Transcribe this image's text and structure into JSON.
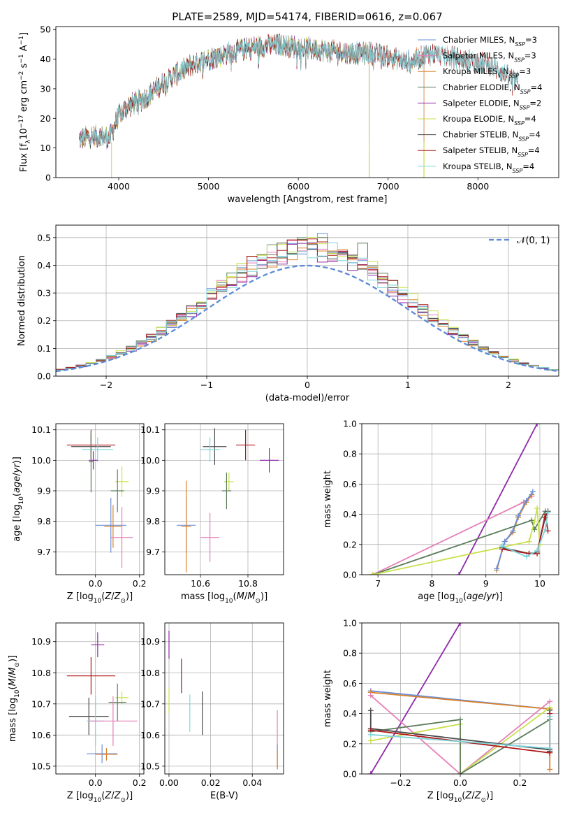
{
  "figure": {
    "title": "PLATE=2589, MJD=54174, FIBERID=0616, z=0.067"
  },
  "colors": {
    "Chabrier MILES": "#6a8fd8",
    "Salpeter MILES": "#e57fb8",
    "Kroupa MILES": "#d9822b",
    "Chabrier ELODIE": "#5a7d5a",
    "Salpeter ELODIE": "#8e2aa8",
    "Kroupa ELODIE": "#c8e04a",
    "Chabrier STELIB": "#4a4a4a",
    "Salpeter STELIB": "#b01818",
    "Kroupa STELIB": "#7fd6dc",
    "gauss": "#5b8ad8",
    "grid": "#b0b0b0"
  },
  "chart_data": [
    {
      "id": "spectrum",
      "type": "line",
      "xlabel": "wavelength [Angstrom, rest frame]",
      "ylabel": "Flux [f_λ10^-17 erg cm^-2 s^-1 A^-1]",
      "xlim": [
        3300,
        8900
      ],
      "ylim": [
        0,
        51
      ],
      "xticks": [
        4000,
        5000,
        6000,
        7000,
        8000
      ],
      "yticks": [
        0,
        10,
        20,
        30,
        40,
        50
      ],
      "grid": false,
      "legend_position": "top-right",
      "legend": [
        {
          "name": "Chabrier MILES",
          "nssp": "3"
        },
        {
          "name": "Salpeter MILES",
          "nssp": "3"
        },
        {
          "name": "Kroupa MILES",
          "nssp": "3"
        },
        {
          "name": "Chabrier ELODIE",
          "nssp": "4"
        },
        {
          "name": "Salpeter ELODIE",
          "nssp": "2"
        },
        {
          "name": "Kroupa ELODIE",
          "nssp": "4"
        },
        {
          "name": "Chabrier STELIB",
          "nssp": "4"
        },
        {
          "name": "Salpeter STELIB",
          "nssp": "4"
        },
        {
          "name": "Kroupa STELIB",
          "nssp": "4"
        }
      ],
      "legend_nssp_label": "N_SSP=",
      "continuum": {
        "x": [
          3560,
          3700,
          3900,
          4000,
          4100,
          4300,
          4500,
          4800,
          5000,
          5200,
          5500,
          5800,
          6000,
          6300,
          6600,
          6800,
          7000,
          7200,
          7500,
          7800,
          8000,
          8200,
          8400
        ],
        "y": [
          13,
          14,
          13.5,
          21,
          24,
          27,
          32,
          38,
          40,
          42,
          44,
          45,
          44,
          43,
          42,
          42,
          41,
          39,
          42,
          40,
          39,
          37,
          33
        ]
      },
      "drops": [
        {
          "x": 3920,
          "y": 0
        },
        {
          "x": 6790,
          "y": 0
        },
        {
          "x": 7400,
          "y": 0
        }
      ],
      "series_end": {
        "MILES": 7400,
        "ELODIE": 6790,
        "STELIB": 8450
      }
    },
    {
      "id": "residual_histogram",
      "type": "histogram",
      "xlabel": "(data-model)/error",
      "ylabel": "Normed distribution",
      "xlim": [
        -2.5,
        2.5
      ],
      "ylim": [
        0,
        0.545
      ],
      "xticks": [
        -2,
        -1,
        0,
        1,
        2
      ],
      "yticks": [
        0.0,
        0.1,
        0.2,
        0.3,
        0.4,
        0.5
      ],
      "grid": true,
      "legend_position": "top-right",
      "gaussian_label": "𝒩(0, 1)",
      "bin_width": 0.1,
      "peak_heights": {
        "Chabrier MILES": 0.47,
        "Salpeter MILES": 0.46,
        "Kroupa MILES": 0.45,
        "Chabrier ELODIE": 0.47,
        "Salpeter ELODIE": 0.45,
        "Kroupa ELODIE": 0.48,
        "Chabrier STELIB": 0.46,
        "Salpeter STELIB": 0.47,
        "Kroupa STELIB": 0.46
      },
      "tallest_bars": [
        {
          "series": "Chabrier MILES",
          "x": 0.15,
          "y": 0.515
        },
        {
          "series": "Chabrier ELODIE",
          "x": 0.55,
          "y": 0.48
        },
        {
          "series": "Kroupa ELODIE",
          "x": 0.05,
          "y": 0.5
        }
      ]
    },
    {
      "id": "age_vs_Z",
      "type": "errorbar",
      "xlabel": "Z [log10(Z/Z⊙)]",
      "ylabel": "age  [log10(age/yr)]",
      "xlim": [
        -0.18,
        0.22
      ],
      "ylim": [
        9.625,
        10.12
      ],
      "xticks": [
        0.0,
        0.2
      ],
      "yticks": [
        9.7,
        9.8,
        9.9,
        10.0,
        10.1
      ],
      "grid": true,
      "points": [
        {
          "s": "Salpeter STELIB",
          "x": -0.02,
          "y": 10.05,
          "xerr": 0.11,
          "yerr": 0.05
        },
        {
          "s": "Chabrier STELIB",
          "x": -0.02,
          "y": 10.045,
          "xerr": 0.09,
          "yerr": 0.04
        },
        {
          "s": "Kroupa STELIB",
          "x": 0.01,
          "y": 10.035,
          "xerr": 0.07,
          "yerr": 0.04
        },
        {
          "s": "Salpeter ELODIE",
          "x": -0.01,
          "y": 10.0,
          "xerr": 0.02,
          "yerr": 0.03
        },
        {
          "s": "Chabrier ELODIE",
          "x": -0.02,
          "y": 9.995,
          "xerr": 0.01,
          "yerr": 0.1
        },
        {
          "s": "Kroupa ELODIE",
          "x": 0.12,
          "y": 9.93,
          "xerr": 0.03,
          "yerr": 0.05
        },
        {
          "s": "Chabrier ELODIE",
          "x": 0.1,
          "y": 9.9,
          "xerr": 0.03,
          "yerr": 0.07
        },
        {
          "s": "Chabrier MILES",
          "x": 0.07,
          "y": 9.787,
          "xerr": 0.07,
          "yerr": 0.09
        },
        {
          "s": "Kroupa MILES",
          "x": 0.08,
          "y": 9.783,
          "xerr": 0.04,
          "yerr": 0.07
        },
        {
          "s": "Salpeter MILES",
          "x": 0.12,
          "y": 9.747,
          "xerr": 0.05,
          "yerr": 0.1
        }
      ]
    },
    {
      "id": "age_vs_mass",
      "type": "errorbar",
      "xlabel": "mass [log10(M/M⊙)]",
      "ylabel": "",
      "xlim": [
        10.45,
        10.95
      ],
      "ylim": [
        9.625,
        10.12
      ],
      "xticks": [
        10.6,
        10.8
      ],
      "yticks": [
        9.7,
        9.8,
        9.9,
        10.0,
        10.1
      ],
      "grid": true,
      "points": [
        {
          "s": "Salpeter STELIB",
          "x": 10.79,
          "y": 10.05,
          "xerr": 0.04,
          "yerr": 0.05
        },
        {
          "s": "Chabrier STELIB",
          "x": 10.66,
          "y": 10.045,
          "xerr": 0.05,
          "yerr": 0.06
        },
        {
          "s": "Kroupa STELIB",
          "x": 10.64,
          "y": 10.035,
          "xerr": 0.04,
          "yerr": 0.04
        },
        {
          "s": "Salpeter ELODIE",
          "x": 10.89,
          "y": 10.0,
          "xerr": 0.04,
          "yerr": 0.04
        },
        {
          "s": "Kroupa ELODIE",
          "x": 10.72,
          "y": 9.93,
          "xerr": 0.02,
          "yerr": 0.03
        },
        {
          "s": "Chabrier ELODIE",
          "x": 10.71,
          "y": 9.9,
          "xerr": 0.02,
          "yerr": 0.06
        },
        {
          "s": "Chabrier MILES",
          "x": 10.54,
          "y": 9.787,
          "xerr": 0.04,
          "yerr": 0.09
        },
        {
          "s": "Kroupa MILES",
          "x": 10.54,
          "y": 9.783,
          "xerr": 0.02,
          "yerr": 0.15
        },
        {
          "s": "Salpeter MILES",
          "x": 10.64,
          "y": 9.747,
          "xerr": 0.04,
          "yerr": 0.08
        }
      ]
    },
    {
      "id": "weight_vs_age",
      "type": "line",
      "xlabel": "age  [log10(age/yr)]",
      "ylabel": "mass weight",
      "xlim": [
        6.7,
        10.35
      ],
      "ylim": [
        0,
        1.0
      ],
      "xticks": [
        7,
        8,
        9,
        10
      ],
      "yticks": [
        0.0,
        0.2,
        0.4,
        0.6,
        0.8,
        1.0
      ],
      "grid": true,
      "series": [
        {
          "s": "Salpeter ELODIE",
          "x": [
            8.5,
            9.95
          ],
          "y": [
            0.0,
            1.0
          ]
        },
        {
          "s": "Salpeter MILES",
          "x": [
            6.9,
            9.7,
            9.85
          ],
          "y": [
            0.0,
            0.48,
            0.52
          ]
        },
        {
          "s": "Kroupa MILES",
          "x": [
            9.2,
            9.35,
            9.5,
            9.6,
            9.75,
            9.85
          ],
          "y": [
            0.03,
            0.22,
            0.28,
            0.38,
            0.48,
            0.53
          ]
        },
        {
          "s": "Chabrier MILES",
          "x": [
            9.2,
            9.35,
            9.5,
            9.6,
            9.75,
            9.87
          ],
          "y": [
            0.04,
            0.22,
            0.29,
            0.39,
            0.49,
            0.55
          ]
        },
        {
          "s": "Chabrier ELODIE",
          "x": [
            6.9,
            9.85,
            9.9,
            10.1
          ],
          "y": [
            0.0,
            0.36,
            0.3,
            0.42
          ]
        },
        {
          "s": "Kroupa ELODIE",
          "x": [
            6.9,
            9.8,
            9.9,
            9.95,
            10.0
          ],
          "y": [
            0.0,
            0.22,
            0.35,
            0.44,
            0.2
          ]
        },
        {
          "s": "Chabrier STELIB",
          "x": [
            9.3,
            9.8,
            9.95,
            10.1,
            10.15
          ],
          "y": [
            0.18,
            0.14,
            0.15,
            0.38,
            0.42
          ]
        },
        {
          "s": "Salpeter STELIB",
          "x": [
            9.3,
            9.8,
            9.95,
            10.1,
            10.15
          ],
          "y": [
            0.17,
            0.14,
            0.14,
            0.4,
            0.29
          ]
        },
        {
          "s": "Kroupa STELIB",
          "x": [
            9.3,
            9.75,
            9.95,
            10.1,
            10.15
          ],
          "y": [
            0.19,
            0.12,
            0.16,
            0.3,
            0.41
          ]
        }
      ]
    },
    {
      "id": "mass_vs_Z",
      "type": "errorbar",
      "xlabel": "Z [log10(Z/Z⊙)]",
      "ylabel": "mass [log10(M/M⊙)]",
      "xlim": [
        -0.18,
        0.22
      ],
      "ylim": [
        10.475,
        10.96
      ],
      "xticks": [
        0.0,
        0.2
      ],
      "yticks": [
        10.5,
        10.6,
        10.7,
        10.8,
        10.9
      ],
      "grid": true,
      "points": [
        {
          "s": "Salpeter ELODIE",
          "x": 0.01,
          "y": 10.89,
          "xerr": 0.03,
          "yerr": 0.04
        },
        {
          "s": "Salpeter STELIB",
          "x": -0.02,
          "y": 10.79,
          "xerr": 0.11,
          "yerr": 0.06
        },
        {
          "s": "Kroupa ELODIE",
          "x": 0.12,
          "y": 10.72,
          "xerr": 0.03,
          "yerr": 0.02
        },
        {
          "s": "Chabrier ELODIE",
          "x": 0.1,
          "y": 10.705,
          "xerr": 0.04,
          "yerr": 0.06
        },
        {
          "s": "Chabrier STELIB",
          "x": -0.03,
          "y": 10.66,
          "xerr": 0.09,
          "yerr": 0.06
        },
        {
          "s": "Kroupa STELIB",
          "x": 0.0,
          "y": 10.645,
          "xerr": 0.04,
          "yerr": 0.08
        },
        {
          "s": "Salpeter MILES",
          "x": 0.08,
          "y": 10.645,
          "xerr": 0.11,
          "yerr": 0.08
        },
        {
          "s": "Chabrier MILES",
          "x": 0.03,
          "y": 10.54,
          "xerr": 0.07,
          "yerr": 0.03
        },
        {
          "s": "Kroupa MILES",
          "x": 0.05,
          "y": 10.538,
          "xerr": 0.05,
          "yerr": 0.02
        }
      ]
    },
    {
      "id": "mass_vs_ebv",
      "type": "errorbar",
      "xlabel": "E(B-V)",
      "ylabel": "",
      "xlim": [
        -0.002,
        0.055
      ],
      "ylim": [
        10.475,
        10.96
      ],
      "xticks": [
        0.0,
        0.02,
        0.04
      ],
      "yticks": [
        10.5,
        10.6,
        10.7,
        10.8,
        10.9
      ],
      "grid": true,
      "points": [
        {
          "s": "Salpeter ELODIE",
          "x": 0.0,
          "y": 10.89,
          "xerr": 0.0,
          "yerr": 0.045
        },
        {
          "s": "Salpeter STELIB",
          "x": 0.006,
          "y": 10.79,
          "xerr": 0.0,
          "yerr": 0.055
        },
        {
          "s": "Kroupa ELODIE",
          "x": 0.0,
          "y": 10.71,
          "xerr": 0.0,
          "yerr": 0.04
        },
        {
          "s": "Chabrier STELIB",
          "x": 0.016,
          "y": 10.67,
          "xerr": 0.0,
          "yerr": 0.07
        },
        {
          "s": "Kroupa STELIB",
          "x": 0.01,
          "y": 10.67,
          "xerr": 0.0,
          "yerr": 0.06
        },
        {
          "s": "Salpeter MILES",
          "x": 0.052,
          "y": 10.59,
          "xerr": 0.0,
          "yerr": 0.09
        },
        {
          "s": "Chabrier MILES",
          "x": 0.052,
          "y": 10.53,
          "xerr": 0.0,
          "yerr": 0.04
        },
        {
          "s": "Kroupa MILES",
          "x": 0.052,
          "y": 10.52,
          "xerr": 0.0,
          "yerr": 0.03
        }
      ]
    },
    {
      "id": "weight_vs_Z",
      "type": "line",
      "xlabel": "Z [log10(Z/Z⊙)]",
      "ylabel": "mass weight",
      "xlim": [
        -0.33,
        0.33
      ],
      "ylim": [
        0,
        1.0
      ],
      "xticks": [
        -0.2,
        0.0,
        0.2
      ],
      "yticks": [
        0.0,
        0.2,
        0.4,
        0.6,
        0.8,
        1.0
      ],
      "grid": true,
      "series": [
        {
          "s": "Salpeter ELODIE",
          "x": [
            -0.3,
            0.0
          ],
          "y": [
            0.0,
            1.0
          ]
        },
        {
          "s": "Chabrier MILES",
          "x": [
            -0.3,
            0.3,
            0.3
          ],
          "y": [
            0.55,
            0.43,
            0.15
          ]
        },
        {
          "s": "Kroupa MILES",
          "x": [
            -0.3,
            0.3,
            0.3
          ],
          "y": [
            0.54,
            0.43,
            0.03
          ]
        },
        {
          "s": "Salpeter MILES",
          "x": [
            -0.3,
            0.0,
            0.3
          ],
          "y": [
            0.52,
            0.0,
            0.48
          ]
        },
        {
          "s": "Kroupa ELODIE",
          "x": [
            -0.3,
            0.0,
            0.0,
            0.3
          ],
          "y": [
            0.22,
            0.33,
            0.0,
            0.44
          ]
        },
        {
          "s": "Chabrier ELODIE",
          "x": [
            -0.3,
            0.0,
            0.0,
            0.3,
            0.3
          ],
          "y": [
            0.28,
            0.36,
            0.0,
            0.36,
            0.42
          ]
        },
        {
          "s": "Chabrier STELIB",
          "x": [
            -0.3,
            -0.3,
            0.3,
            0.3
          ],
          "y": [
            0.42,
            0.3,
            0.16,
            0.15
          ]
        },
        {
          "s": "Salpeter STELIB",
          "x": [
            -0.3,
            0.3,
            0.3
          ],
          "y": [
            0.29,
            0.14,
            0.4
          ]
        },
        {
          "s": "Kroupa STELIB",
          "x": [
            -0.3,
            0.3,
            0.3
          ],
          "y": [
            0.26,
            0.17,
            0.38
          ]
        }
      ]
    }
  ]
}
